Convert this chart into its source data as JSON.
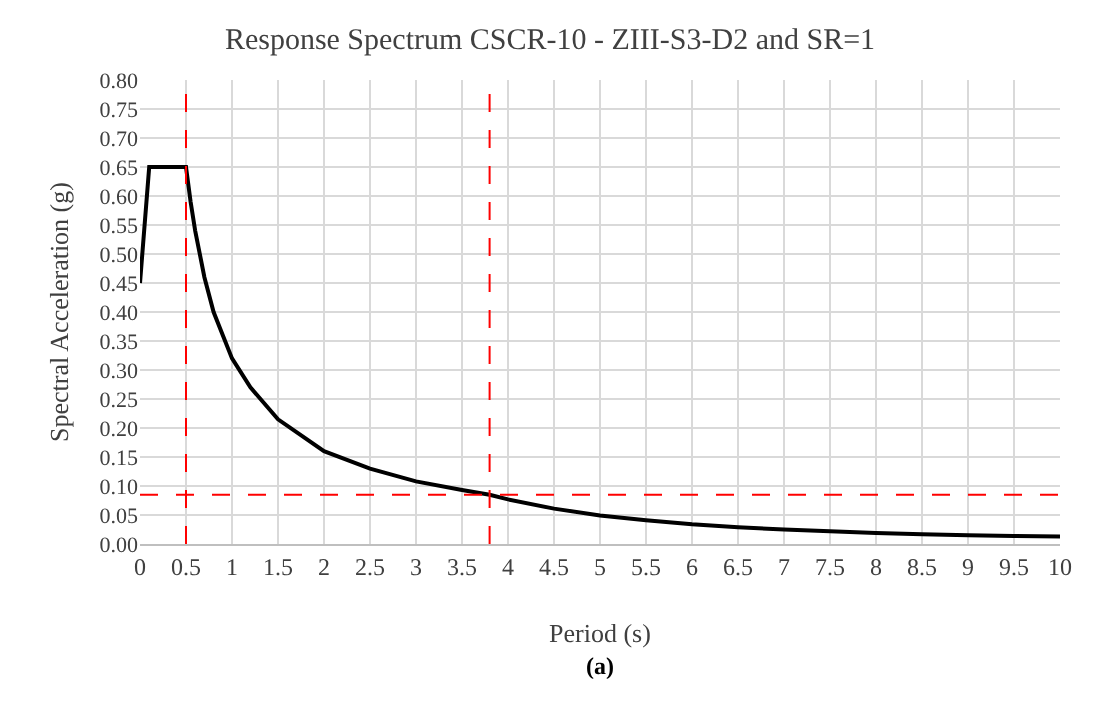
{
  "chart_data": {
    "type": "line",
    "title": "Response Spectrum CSCR-10 - ZIII-S3-D2 and SR=1",
    "xlabel": "Period (s)",
    "ylabel": "Spectral Acceleration (g)",
    "annotations": [
      "(a)"
    ],
    "x": [
      0,
      0.1,
      0.5,
      0.55,
      0.6,
      0.7,
      0.8,
      0.9,
      1,
      1.2,
      1.5,
      2,
      2.5,
      3,
      3.5,
      3.8,
      4,
      4.5,
      5,
      5.5,
      6,
      6.5,
      7,
      7.5,
      8,
      8.5,
      9,
      9.5,
      10
    ],
    "series": [
      {
        "color": "#000000",
        "values": [
          0.45,
          0.65,
          0.65,
          0.59,
          0.54,
          0.46,
          0.4,
          0.36,
          0.32,
          0.27,
          0.215,
          0.16,
          0.13,
          0.108,
          0.093,
          0.085,
          0.077,
          0.061,
          0.049,
          0.041,
          0.034,
          0.029,
          0.025,
          0.022,
          0.019,
          0.017,
          0.015,
          0.014,
          0.013
        ]
      }
    ],
    "xlim": [
      0,
      10
    ],
    "xticks": [
      0,
      0.5,
      1,
      1.5,
      2,
      2.5,
      3,
      3.5,
      4,
      4.5,
      5,
      5.5,
      6,
      6.5,
      7,
      7.5,
      8,
      8.5,
      9,
      9.5,
      10
    ],
    "ylim": [
      0,
      0.8
    ],
    "yticks": [
      {
        "value": 0,
        "label": "0.00"
      },
      {
        "value": 0.05,
        "label": "0.05"
      },
      {
        "value": 0.1,
        "label": "0.10"
      },
      {
        "value": 0.15,
        "label": "0.15"
      },
      {
        "value": 0.2,
        "label": "0.20"
      },
      {
        "value": 0.25,
        "label": "0.25"
      },
      {
        "value": 0.3,
        "label": "0.30"
      },
      {
        "value": 0.35,
        "label": "0.35"
      },
      {
        "value": 0.4,
        "label": "0.40"
      },
      {
        "value": 0.45,
        "label": "0.45"
      },
      {
        "value": 0.5,
        "label": "0.50"
      },
      {
        "value": 0.55,
        "label": "0.55"
      },
      {
        "value": 0.6,
        "label": "0.60"
      },
      {
        "value": 0.65,
        "label": "0.65"
      },
      {
        "value": 0.7,
        "label": "0.70"
      },
      {
        "value": 0.75,
        "label": "0.75"
      },
      {
        "value": 0.8,
        "label": "0.80"
      }
    ],
    "ref_lines": [
      {
        "axis": "x",
        "value": 0.5,
        "color": "#ff0000",
        "line_style": "dashed"
      },
      {
        "axis": "x",
        "value": 3.8,
        "color": "#ff0000",
        "line_style": "dashed"
      },
      {
        "axis": "y",
        "value": 0.085,
        "color": "#ff0000",
        "line_style": "dashed"
      }
    ],
    "grid": true,
    "marker": "none",
    "line_style": "solid"
  }
}
